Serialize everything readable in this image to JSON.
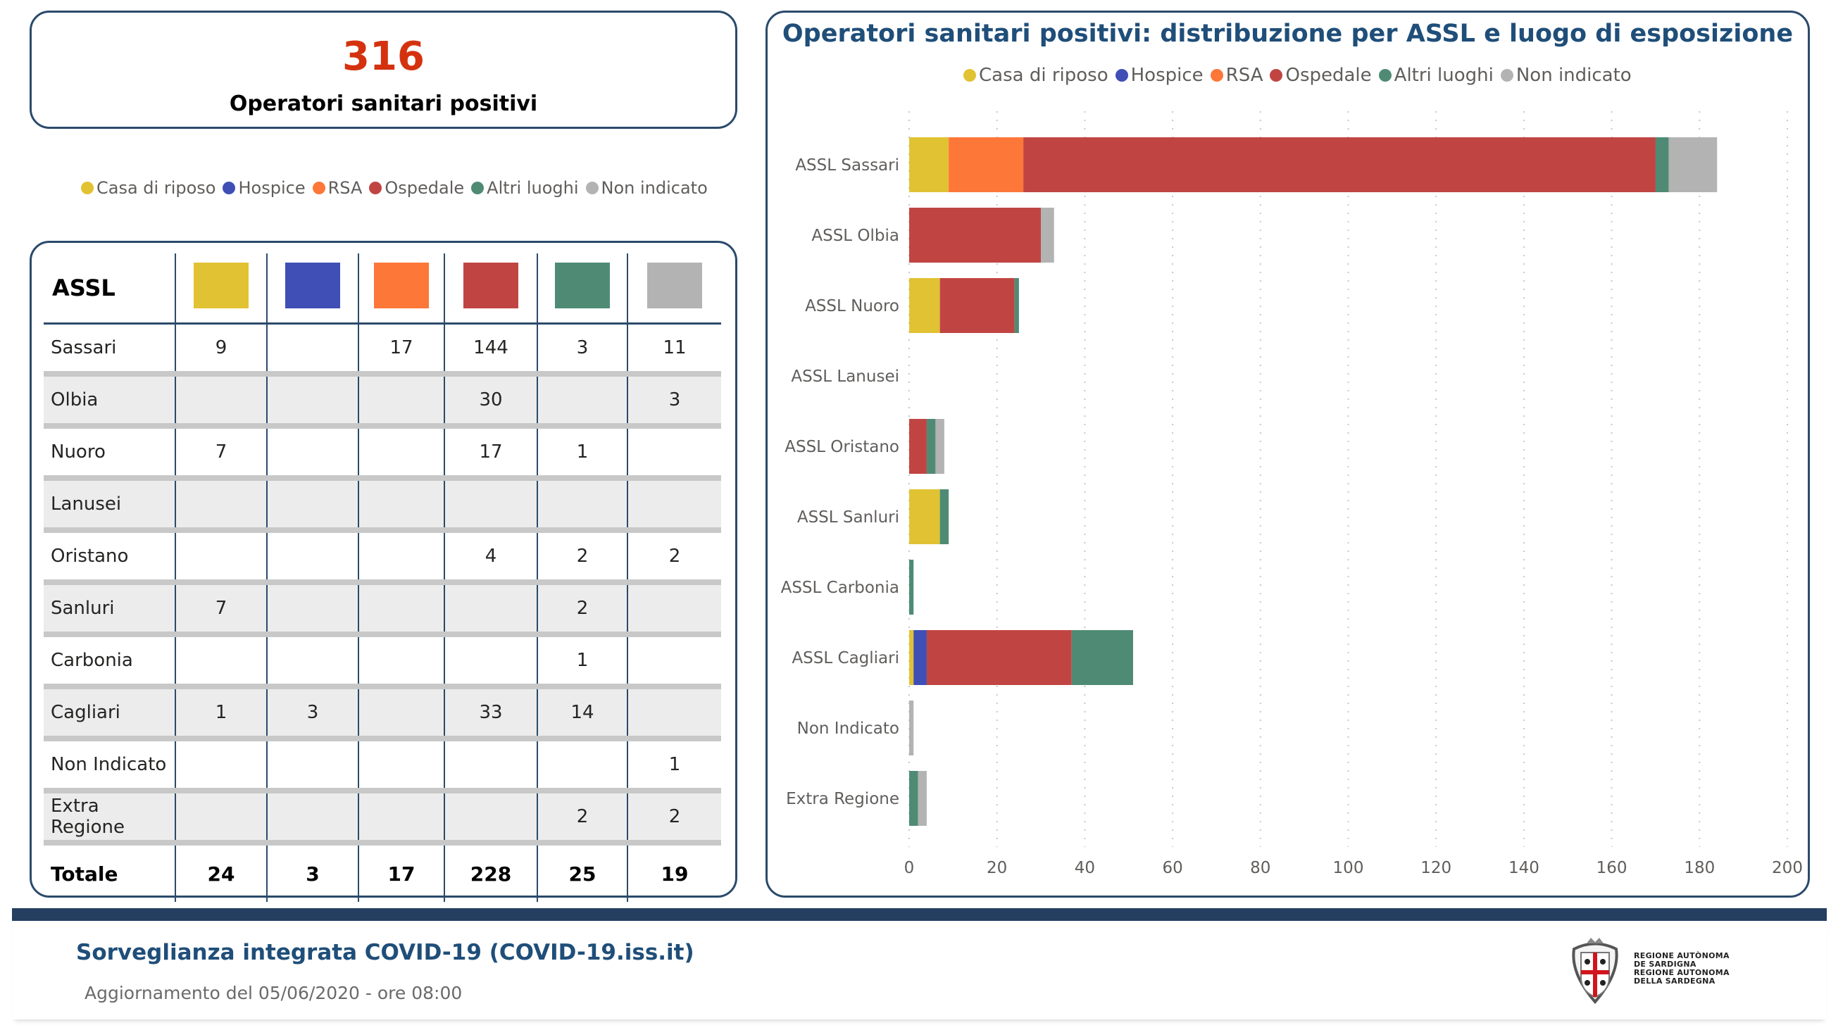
{
  "kpi": {
    "value": "316",
    "label": "Operatori sanitari positivi"
  },
  "legend": [
    {
      "label": "Casa di riposo",
      "color": "#e1c233"
    },
    {
      "label": "Hospice",
      "color": "#3f4fb5"
    },
    {
      "label": "RSA",
      "color": "#fd7739"
    },
    {
      "label": "Ospedale",
      "color": "#c04542"
    },
    {
      "label": "Altri luoghi",
      "color": "#4f8b74"
    },
    {
      "label": "Non indicato",
      "color": "#b3b3b3"
    }
  ],
  "table": {
    "header": "ASSL",
    "rows": [
      {
        "name": "Sassari",
        "values": [
          "9",
          "",
          "17",
          "144",
          "3",
          "11"
        ]
      },
      {
        "name": "Olbia",
        "values": [
          "",
          "",
          "",
          "30",
          "",
          "3"
        ]
      },
      {
        "name": "Nuoro",
        "values": [
          "7",
          "",
          "",
          "17",
          "1",
          ""
        ]
      },
      {
        "name": "Lanusei",
        "values": [
          "",
          "",
          "",
          "",
          "",
          ""
        ]
      },
      {
        "name": "Oristano",
        "values": [
          "",
          "",
          "",
          "4",
          "2",
          "2"
        ]
      },
      {
        "name": "Sanluri",
        "values": [
          "7",
          "",
          "",
          "",
          "2",
          ""
        ]
      },
      {
        "name": "Carbonia",
        "values": [
          "",
          "",
          "",
          "",
          "1",
          ""
        ]
      },
      {
        "name": "Cagliari",
        "values": [
          "1",
          "3",
          "",
          "33",
          "14",
          ""
        ]
      },
      {
        "name": "Non Indicato",
        "values": [
          "",
          "",
          "",
          "",
          "",
          "1"
        ]
      },
      {
        "name": "Extra Regione",
        "values": [
          "",
          "",
          "",
          "",
          "2",
          "2"
        ]
      }
    ],
    "total": {
      "name": "Totale",
      "values": [
        "24",
        "3",
        "17",
        "228",
        "25",
        "19"
      ]
    }
  },
  "chart_data": {
    "type": "bar",
    "orientation": "horizontal",
    "stacked": true,
    "title": "Operatori sanitari positivi: distribuzione per ASSL e luogo di esposizione",
    "legend_position": "top-center",
    "grid": true,
    "categories": [
      "ASSL Sassari",
      "ASSL Olbia",
      "ASSL Nuoro",
      "ASSL Lanusei",
      "ASSL Oristano",
      "ASSL Sanluri",
      "ASSL Carbonia",
      "ASSL Cagliari",
      "Non Indicato",
      "Extra Regione"
    ],
    "series": [
      {
        "name": "Casa di riposo",
        "color": "#e1c233",
        "values": [
          9,
          0,
          7,
          0,
          0,
          7,
          0,
          1,
          0,
          0
        ]
      },
      {
        "name": "Hospice",
        "color": "#3f4fb5",
        "values": [
          0,
          0,
          0,
          0,
          0,
          0,
          0,
          3,
          0,
          0
        ]
      },
      {
        "name": "RSA",
        "color": "#fd7739",
        "values": [
          17,
          0,
          0,
          0,
          0,
          0,
          0,
          0,
          0,
          0
        ]
      },
      {
        "name": "Ospedale",
        "color": "#c04542",
        "values": [
          144,
          30,
          17,
          0,
          4,
          0,
          0,
          33,
          0,
          0
        ]
      },
      {
        "name": "Altri luoghi",
        "color": "#4f8b74",
        "values": [
          3,
          0,
          1,
          0,
          2,
          2,
          1,
          14,
          0,
          2
        ]
      },
      {
        "name": "Non indicato",
        "color": "#b3b3b3",
        "values": [
          11,
          3,
          0,
          0,
          2,
          0,
          0,
          0,
          1,
          2
        ]
      }
    ],
    "xlabel": "",
    "ylabel": "",
    "xlim": [
      0,
      200
    ],
    "xticks": [
      "0",
      "20",
      "40",
      "60",
      "80",
      "100",
      "120",
      "140",
      "160",
      "180",
      "200"
    ]
  },
  "footer": {
    "title": "Sorveglianza integrata COVID-19 (COVID-19.iss.it)",
    "subtitle": "Aggiornamento del 05/06/2020 - ore 08:00",
    "logo_lines": [
      "REGIONE AUTÒNOMA",
      "DE SARDIGNA",
      "REGIONE AUTONOMA",
      "DELLA SARDEGNA"
    ]
  }
}
